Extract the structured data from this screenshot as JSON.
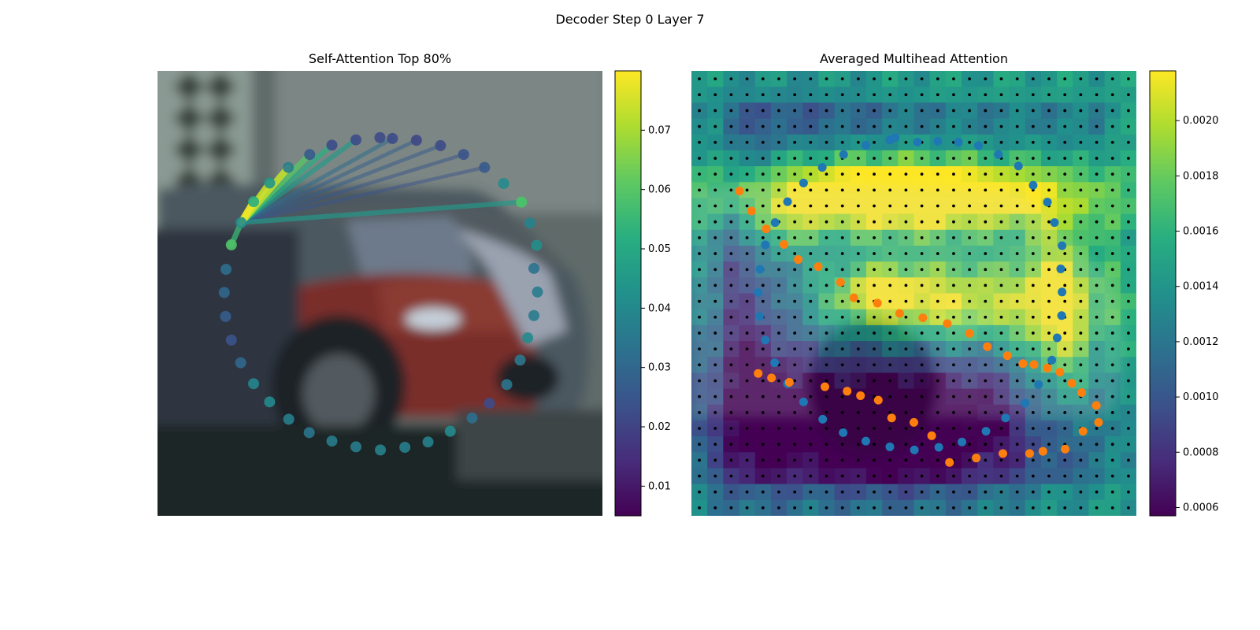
{
  "figure": {
    "title": "Decoder Step 0 Layer 7"
  },
  "chart_data": [
    {
      "type": "scatter",
      "title": "Self-Attention Top 80%",
      "xlim": [
        0,
        1
      ],
      "ylim": [
        0,
        1
      ],
      "axes_visible": false,
      "background": "blurred camera image: parked cars",
      "colormap": "viridis",
      "colorbar": {
        "min": 0.005,
        "max": 0.08,
        "ticks": [
          0.01,
          0.02,
          0.03,
          0.04,
          0.05,
          0.06,
          0.07
        ],
        "tick_labels": [
          "0.01",
          "0.02",
          "0.03",
          "0.04",
          "0.05",
          "0.06",
          "0.07"
        ]
      },
      "points": [
        {
          "x": 0.528,
          "y": 0.152,
          "v": 0.022
        },
        {
          "x": 0.582,
          "y": 0.156,
          "v": 0.021
        },
        {
          "x": 0.636,
          "y": 0.168,
          "v": 0.022
        },
        {
          "x": 0.688,
          "y": 0.188,
          "v": 0.024
        },
        {
          "x": 0.735,
          "y": 0.217,
          "v": 0.026
        },
        {
          "x": 0.778,
          "y": 0.253,
          "v": 0.04
        },
        {
          "x": 0.818,
          "y": 0.295,
          "v": 0.058
        },
        {
          "x": 0.818,
          "y": 0.295,
          "v": 0.058
        },
        {
          "x": 0.837,
          "y": 0.342,
          "v": 0.038
        },
        {
          "x": 0.852,
          "y": 0.392,
          "v": 0.042
        },
        {
          "x": 0.846,
          "y": 0.444,
          "v": 0.033
        },
        {
          "x": 0.854,
          "y": 0.497,
          "v": 0.036
        },
        {
          "x": 0.846,
          "y": 0.55,
          "v": 0.036
        },
        {
          "x": 0.832,
          "y": 0.6,
          "v": 0.04
        },
        {
          "x": 0.815,
          "y": 0.65,
          "v": 0.035
        },
        {
          "x": 0.785,
          "y": 0.705,
          "v": 0.034
        },
        {
          "x": 0.746,
          "y": 0.747,
          "v": 0.022
        },
        {
          "x": 0.707,
          "y": 0.78,
          "v": 0.032
        },
        {
          "x": 0.658,
          "y": 0.81,
          "v": 0.04
        },
        {
          "x": 0.608,
          "y": 0.834,
          "v": 0.038
        },
        {
          "x": 0.556,
          "y": 0.846,
          "v": 0.037
        },
        {
          "x": 0.501,
          "y": 0.852,
          "v": 0.038
        },
        {
          "x": 0.446,
          "y": 0.845,
          "v": 0.036
        },
        {
          "x": 0.392,
          "y": 0.832,
          "v": 0.036
        },
        {
          "x": 0.341,
          "y": 0.813,
          "v": 0.034
        },
        {
          "x": 0.295,
          "y": 0.783,
          "v": 0.037
        },
        {
          "x": 0.252,
          "y": 0.744,
          "v": 0.04
        },
        {
          "x": 0.216,
          "y": 0.703,
          "v": 0.039
        },
        {
          "x": 0.187,
          "y": 0.656,
          "v": 0.03
        },
        {
          "x": 0.166,
          "y": 0.605,
          "v": 0.024
        },
        {
          "x": 0.153,
          "y": 0.552,
          "v": 0.027
        },
        {
          "x": 0.15,
          "y": 0.498,
          "v": 0.03
        },
        {
          "x": 0.154,
          "y": 0.446,
          "v": 0.032
        },
        {
          "x": 0.166,
          "y": 0.391,
          "v": 0.059
        },
        {
          "x": 0.188,
          "y": 0.341,
          "v": 0.041
        },
        {
          "x": 0.216,
          "y": 0.294,
          "v": 0.052
        },
        {
          "x": 0.252,
          "y": 0.252,
          "v": 0.044
        },
        {
          "x": 0.294,
          "y": 0.217,
          "v": 0.036
        },
        {
          "x": 0.342,
          "y": 0.188,
          "v": 0.026
        },
        {
          "x": 0.392,
          "y": 0.167,
          "v": 0.022
        },
        {
          "x": 0.446,
          "y": 0.155,
          "v": 0.022
        },
        {
          "x": 0.5,
          "y": 0.15,
          "v": 0.022
        }
      ],
      "source_point": {
        "x": 0.188,
        "y": 0.341
      },
      "edges": [
        {
          "to": [
            0.216,
            0.294
          ],
          "v": 0.078
        },
        {
          "to": [
            0.252,
            0.252
          ],
          "v": 0.074
        },
        {
          "to": [
            0.294,
            0.217
          ],
          "v": 0.073
        },
        {
          "to": [
            0.342,
            0.188
          ],
          "v": 0.06
        },
        {
          "to": [
            0.392,
            0.167
          ],
          "v": 0.052
        },
        {
          "to": [
            0.446,
            0.155
          ],
          "v": 0.045
        },
        {
          "to": [
            0.528,
            0.152
          ],
          "v": 0.032
        },
        {
          "to": [
            0.582,
            0.156
          ],
          "v": 0.028
        },
        {
          "to": [
            0.636,
            0.168
          ],
          "v": 0.027
        },
        {
          "to": [
            0.688,
            0.188
          ],
          "v": 0.025
        },
        {
          "to": [
            0.735,
            0.217
          ],
          "v": 0.024
        },
        {
          "to": [
            0.166,
            0.391
          ],
          "v": 0.055
        },
        {
          "to": [
            0.818,
            0.295
          ],
          "v": 0.045
        }
      ]
    },
    {
      "type": "heatmap",
      "title": "Averaged Multihead Attention",
      "xlim": [
        0,
        1
      ],
      "ylim": [
        0,
        1
      ],
      "axes_visible": false,
      "colormap": "viridis",
      "grid": {
        "rows": 28,
        "cols": 28,
        "min": 0.00055,
        "max": 0.00218
      },
      "colorbar": {
        "min": 0.00057,
        "max": 0.00218,
        "ticks": [
          0.0006,
          0.0008,
          0.001,
          0.0012,
          0.0014,
          0.0016,
          0.0018,
          0.002
        ],
        "tick_labels": [
          "0.0006",
          "0.0008",
          "0.0010",
          "0.0012",
          "0.0014",
          "0.0016",
          "0.0018",
          "0.0020"
        ]
      },
      "hotspots": [
        {
          "x": 0.48,
          "y": 0.28,
          "sx": 0.28,
          "sy": 0.06,
          "a": 0.0014
        },
        {
          "x": 0.57,
          "y": 0.52,
          "sx": 0.2,
          "sy": 0.07,
          "a": 0.0009
        },
        {
          "x": 0.83,
          "y": 0.55,
          "sx": 0.06,
          "sy": 0.16,
          "a": 0.0008
        },
        {
          "x": 0.2,
          "y": 0.36,
          "sx": 0.05,
          "sy": 0.06,
          "a": 0.0004
        },
        {
          "x": 0.42,
          "y": 0.5,
          "sx": 0.06,
          "sy": 0.04,
          "a": 0.0005
        }
      ],
      "lowspots": [
        {
          "x": 0.45,
          "y": 0.8,
          "sx": 0.25,
          "sy": 0.12,
          "a": 0.001
        },
        {
          "x": 0.12,
          "y": 0.62,
          "sx": 0.08,
          "sy": 0.25,
          "a": 0.0005
        },
        {
          "x": 0.25,
          "y": 0.1,
          "sx": 0.15,
          "sy": 0.05,
          "a": 0.0002
        }
      ],
      "series": [
        {
          "color": "#1f77b4",
          "points": [
            [
              0.508,
              0.16
            ],
            [
              0.554,
              0.158
            ],
            [
              0.6,
              0.16
            ],
            [
              0.645,
              0.168
            ],
            [
              0.69,
              0.188
            ],
            [
              0.735,
              0.214
            ],
            [
              0.768,
              0.257
            ],
            [
              0.8,
              0.295
            ],
            [
              0.816,
              0.341
            ],
            [
              0.833,
              0.393
            ],
            [
              0.83,
              0.445
            ],
            [
              0.833,
              0.497
            ],
            [
              0.832,
              0.55
            ],
            [
              0.822,
              0.6
            ],
            [
              0.81,
              0.65
            ],
            [
              0.78,
              0.705
            ],
            [
              0.75,
              0.747
            ],
            [
              0.706,
              0.78
            ],
            [
              0.662,
              0.81
            ],
            [
              0.608,
              0.834
            ],
            [
              0.556,
              0.846
            ],
            [
              0.501,
              0.852
            ],
            [
              0.446,
              0.845
            ],
            [
              0.392,
              0.832
            ],
            [
              0.341,
              0.813
            ],
            [
              0.295,
              0.783
            ],
            [
              0.252,
              0.744
            ],
            [
              0.216,
              0.703
            ],
            [
              0.187,
              0.656
            ],
            [
              0.166,
              0.605
            ],
            [
              0.153,
              0.552
            ],
            [
              0.15,
              0.498
            ],
            [
              0.154,
              0.446
            ],
            [
              0.166,
              0.391
            ],
            [
              0.188,
              0.341
            ],
            [
              0.216,
              0.294
            ],
            [
              0.252,
              0.252
            ],
            [
              0.294,
              0.217
            ],
            [
              0.342,
              0.188
            ],
            [
              0.392,
              0.167
            ],
            [
              0.446,
              0.155
            ],
            [
              0.458,
              0.15
            ]
          ]
        },
        {
          "color": "#ff7f0e",
          "points": [
            [
              0.108,
              0.27
            ],
            [
              0.135,
              0.315
            ],
            [
              0.168,
              0.355
            ],
            [
              0.208,
              0.39
            ],
            [
              0.24,
              0.424
            ],
            [
              0.285,
              0.44
            ],
            [
              0.335,
              0.475
            ],
            [
              0.365,
              0.51
            ],
            [
              0.418,
              0.522
            ],
            [
              0.468,
              0.545
            ],
            [
              0.52,
              0.555
            ],
            [
              0.575,
              0.568
            ],
            [
              0.625,
              0.59
            ],
            [
              0.665,
              0.62
            ],
            [
              0.71,
              0.64
            ],
            [
              0.745,
              0.658
            ],
            [
              0.77,
              0.66
            ],
            [
              0.8,
              0.668
            ],
            [
              0.828,
              0.677
            ],
            [
              0.855,
              0.702
            ],
            [
              0.877,
              0.723
            ],
            [
              0.91,
              0.752
            ],
            [
              0.915,
              0.79
            ],
            [
              0.88,
              0.81
            ],
            [
              0.84,
              0.85
            ],
            [
              0.79,
              0.855
            ],
            [
              0.76,
              0.86
            ],
            [
              0.7,
              0.86
            ],
            [
              0.64,
              0.87
            ],
            [
              0.58,
              0.88
            ],
            [
              0.54,
              0.82
            ],
            [
              0.5,
              0.79
            ],
            [
              0.45,
              0.78
            ],
            [
              0.42,
              0.74
            ],
            [
              0.38,
              0.73
            ],
            [
              0.35,
              0.72
            ],
            [
              0.3,
              0.71
            ],
            [
              0.22,
              0.7
            ],
            [
              0.18,
              0.69
            ],
            [
              0.15,
              0.68
            ]
          ]
        }
      ]
    }
  ]
}
